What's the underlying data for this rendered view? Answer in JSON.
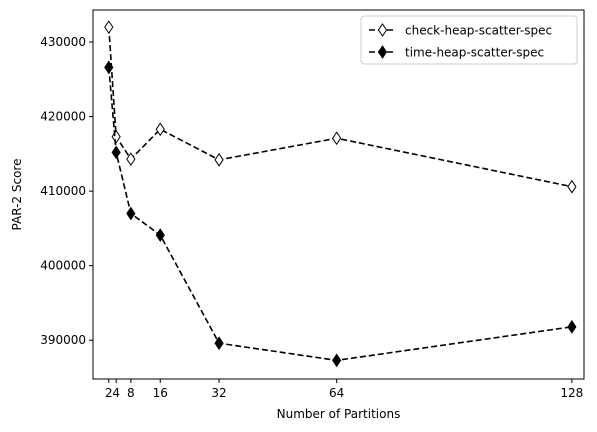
{
  "chart_data": {
    "type": "line",
    "xlabel": "Number of Partitions",
    "ylabel": "PAR-2 Score",
    "x": [
      2,
      4,
      8,
      16,
      32,
      64,
      128
    ],
    "xticks": [
      "2",
      "4",
      "8",
      "16",
      "32",
      "64",
      "128"
    ],
    "yticks": [
      390000,
      400000,
      410000,
      420000,
      430000
    ],
    "ytick_labels": [
      "390000",
      "400000",
      "410000",
      "420000",
      "430000"
    ],
    "xlim": [
      -2.3,
      131.3
    ],
    "ylim": [
      384800,
      434300
    ],
    "grid": false,
    "legend_position": "top-right",
    "series": [
      {
        "name": "check-heap-scatter-spec",
        "values": [
          432000,
          417300,
          414300,
          418300,
          414200,
          417100,
          410600
        ],
        "marker": "diamond",
        "fill": "#ffffff",
        "line_style": "dashed",
        "color": "#000000"
      },
      {
        "name": "time-heap-scatter-spec",
        "values": [
          426600,
          415200,
          407000,
          404100,
          389600,
          387300,
          391800
        ],
        "marker": "diamond",
        "fill": "#000000",
        "line_style": "dashed",
        "color": "#000000"
      }
    ]
  }
}
